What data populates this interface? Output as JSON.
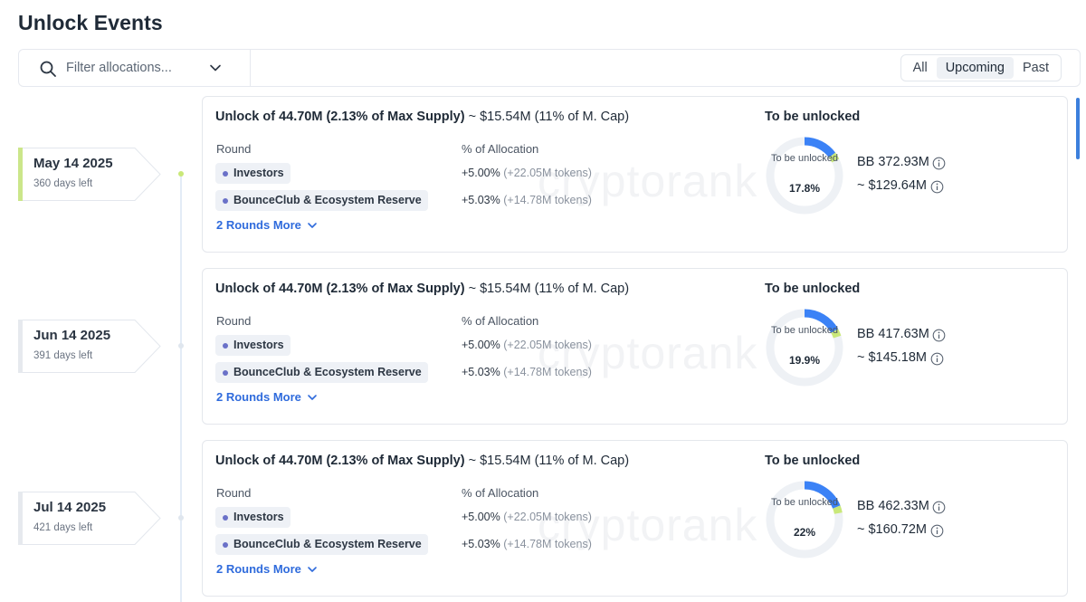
{
  "page": {
    "title": "Unlock Events"
  },
  "filter": {
    "placeholder": "Filter allocations..."
  },
  "tabs": [
    {
      "label": "All",
      "active": false
    },
    {
      "label": "Upcoming",
      "active": true
    },
    {
      "label": "Past",
      "active": false
    }
  ],
  "colors": {
    "accent": "#3b82f6",
    "progress_tail": "#c9e879",
    "ring_track": "#eef1f5",
    "link": "#2f6bdc"
  },
  "watermark": "cryptorank",
  "events": [
    {
      "date": "May 14 2025",
      "days_left": "360 days left",
      "tag_accent": "#cbe68a",
      "title_bold": "Unlock of 44.70M (2.13% of Max Supply)",
      "title_rest": "~ $15.54M (11% of M. Cap)",
      "round_header": "Round",
      "alloc_header": "% of Allocation",
      "rounds": [
        {
          "name": "Investors",
          "pct": "+5.00%",
          "tokens": "(+22.05M tokens)"
        },
        {
          "name": "BounceClub & Ecosystem Reserve",
          "pct": "+5.03%",
          "tokens": "(+14.78M tokens)"
        }
      ],
      "more_label": "2 Rounds More",
      "unlock_heading": "To be unlocked",
      "donut_label": "To be unlocked",
      "donut_pct_text": "17.8%",
      "donut_fraction": 0.178,
      "amount_tokens": "BB 372.93M",
      "amount_usd": "~ $129.64M"
    },
    {
      "date": "Jun 14 2025",
      "days_left": "391 days left",
      "tag_accent": "#e6e9ee",
      "title_bold": "Unlock of 44.70M (2.13% of Max Supply)",
      "title_rest": "~ $15.54M (11% of M. Cap)",
      "round_header": "Round",
      "alloc_header": "% of Allocation",
      "rounds": [
        {
          "name": "Investors",
          "pct": "+5.00%",
          "tokens": "(+22.05M tokens)"
        },
        {
          "name": "BounceClub & Ecosystem Reserve",
          "pct": "+5.03%",
          "tokens": "(+14.78M tokens)"
        }
      ],
      "more_label": "2 Rounds More",
      "unlock_heading": "To be unlocked",
      "donut_label": "To be unlocked",
      "donut_pct_text": "19.9%",
      "donut_fraction": 0.199,
      "amount_tokens": "BB 417.63M",
      "amount_usd": "~ $145.18M"
    },
    {
      "date": "Jul 14 2025",
      "days_left": "421 days left",
      "tag_accent": "#e6e9ee",
      "title_bold": "Unlock of 44.70M (2.13% of Max Supply)",
      "title_rest": "~ $15.54M (11% of M. Cap)",
      "round_header": "Round",
      "alloc_header": "% of Allocation",
      "rounds": [
        {
          "name": "Investors",
          "pct": "+5.00%",
          "tokens": "(+22.05M tokens)"
        },
        {
          "name": "BounceClub & Ecosystem Reserve",
          "pct": "+5.03%",
          "tokens": "(+14.78M tokens)"
        }
      ],
      "more_label": "2 Rounds More",
      "unlock_heading": "To be unlocked",
      "donut_label": "To be unlocked",
      "donut_pct_text": "22%",
      "donut_fraction": 0.22,
      "amount_tokens": "BB 462.33M",
      "amount_usd": "~ $160.72M"
    }
  ]
}
